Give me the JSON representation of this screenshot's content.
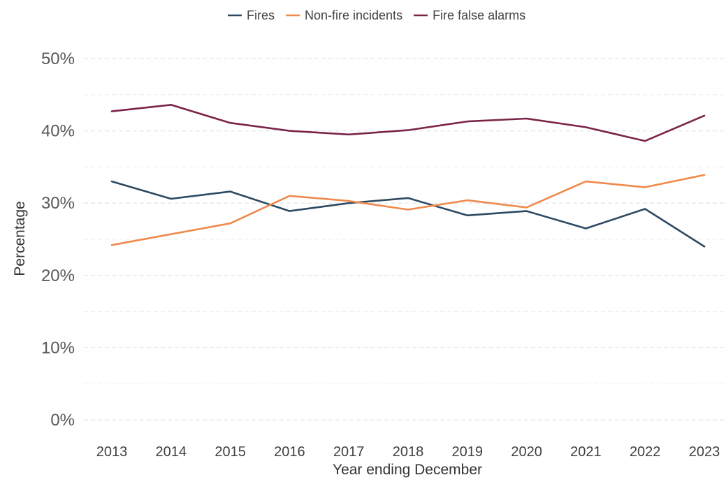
{
  "chart_data": {
    "type": "line",
    "title": "",
    "xlabel": "Year ending December",
    "ylabel": "Percentage",
    "ylim": [
      0,
      50
    ],
    "yticks": [
      0,
      10,
      20,
      30,
      40,
      50
    ],
    "ytick_labels": [
      "0%",
      "10%",
      "20%",
      "30%",
      "40%",
      "50%"
    ],
    "grid": true,
    "legend_position": "top",
    "categories": [
      "2013",
      "2014",
      "2015",
      "2016",
      "2017",
      "2018",
      "2019",
      "2020",
      "2021",
      "2022",
      "2023"
    ],
    "series": [
      {
        "name": "Fires",
        "color": "#2e4a62",
        "values": [
          33.0,
          30.6,
          31.6,
          28.9,
          30.0,
          30.7,
          28.3,
          28.9,
          26.5,
          29.2,
          24.0
        ]
      },
      {
        "name": "Non-fire incidents",
        "color": "#ef8a4c",
        "values": [
          24.2,
          25.7,
          27.2,
          31.0,
          30.3,
          29.1,
          30.4,
          29.4,
          33.0,
          32.2,
          33.9
        ]
      },
      {
        "name": "Fire false alarms",
        "color": "#7a2448",
        "values": [
          42.7,
          43.6,
          41.1,
          40.0,
          39.5,
          40.1,
          41.3,
          41.7,
          40.5,
          38.6,
          42.1
        ]
      }
    ]
  }
}
